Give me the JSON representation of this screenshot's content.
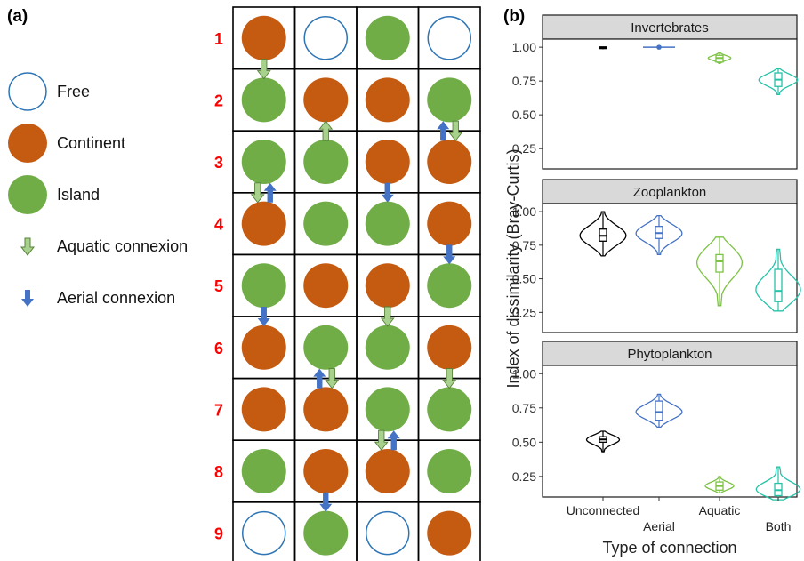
{
  "panel_a": {
    "label": "(a)",
    "legend": [
      {
        "key": "free",
        "label": "Free",
        "icon": "circle-outline"
      },
      {
        "key": "continent",
        "label": "Continent",
        "icon": "circle-filled"
      },
      {
        "key": "island",
        "label": "Island",
        "icon": "circle-filled"
      },
      {
        "key": "aquatic",
        "label": "Aquatic connexion",
        "icon": "arrow-down-outline"
      },
      {
        "key": "aerial",
        "label": "Aerial connexion",
        "icon": "arrow-down-solid"
      }
    ],
    "colors": {
      "continent": "#c55a11",
      "island": "#70ad47",
      "free_stroke": "#2e75b6",
      "aquatic": "#70ad47",
      "aerial": "#4472c4",
      "row_label": "#ff0000"
    },
    "row_labels": [
      "1",
      "2",
      "3",
      "4",
      "5",
      "6",
      "7",
      "8",
      "9"
    ],
    "grid": [
      [
        "continent",
        "free",
        "island",
        "free"
      ],
      [
        "island",
        "continent",
        "continent",
        "island"
      ],
      [
        "island",
        "island",
        "continent",
        "continent"
      ],
      [
        "continent",
        "island",
        "island",
        "continent"
      ],
      [
        "island",
        "continent",
        "continent",
        "island"
      ],
      [
        "continent",
        "island",
        "island",
        "continent"
      ],
      [
        "continent",
        "continent",
        "island",
        "island"
      ],
      [
        "island",
        "continent",
        "continent",
        "island"
      ],
      [
        "free",
        "island",
        "free",
        "continent"
      ]
    ],
    "connections": [
      {
        "between_rows": [
          1,
          2
        ],
        "column": 1,
        "arrows": [
          {
            "type": "aquatic",
            "dir": "down"
          }
        ]
      },
      {
        "between_rows": [
          2,
          3
        ],
        "column": 2,
        "arrows": [
          {
            "type": "aquatic",
            "dir": "up"
          }
        ]
      },
      {
        "between_rows": [
          2,
          3
        ],
        "column": 4,
        "arrows": [
          {
            "type": "aerial",
            "dir": "up"
          },
          {
            "type": "aquatic",
            "dir": "down"
          }
        ]
      },
      {
        "between_rows": [
          3,
          4
        ],
        "column": 1,
        "arrows": [
          {
            "type": "aquatic",
            "dir": "down"
          },
          {
            "type": "aerial",
            "dir": "up"
          }
        ]
      },
      {
        "between_rows": [
          3,
          4
        ],
        "column": 3,
        "arrows": [
          {
            "type": "aerial",
            "dir": "down"
          }
        ]
      },
      {
        "between_rows": [
          4,
          5
        ],
        "column": 4,
        "arrows": [
          {
            "type": "aerial",
            "dir": "down"
          }
        ]
      },
      {
        "between_rows": [
          5,
          6
        ],
        "column": 1,
        "arrows": [
          {
            "type": "aerial",
            "dir": "down"
          }
        ]
      },
      {
        "between_rows": [
          5,
          6
        ],
        "column": 3,
        "arrows": [
          {
            "type": "aquatic",
            "dir": "down"
          }
        ]
      },
      {
        "between_rows": [
          6,
          7
        ],
        "column": 2,
        "arrows": [
          {
            "type": "aerial",
            "dir": "up"
          },
          {
            "type": "aquatic",
            "dir": "down"
          }
        ]
      },
      {
        "between_rows": [
          6,
          7
        ],
        "column": 4,
        "arrows": [
          {
            "type": "aquatic",
            "dir": "down"
          }
        ]
      },
      {
        "between_rows": [
          7,
          8
        ],
        "column": 3,
        "arrows": [
          {
            "type": "aquatic",
            "dir": "down"
          },
          {
            "type": "aerial",
            "dir": "up"
          }
        ]
      },
      {
        "between_rows": [
          8,
          9
        ],
        "column": 2,
        "arrows": [
          {
            "type": "aerial",
            "dir": "down"
          }
        ]
      }
    ]
  },
  "chart_data": {
    "type": "violin",
    "panel_label": "(b)",
    "xlabel": "Type of connection",
    "ylabel": "Index of dissimilarity (Bray-Curtis)",
    "categories": [
      "Unconnected",
      "Aerial",
      "Aquatic",
      "Both"
    ],
    "category_colors": [
      "#000000",
      "#4472c4",
      "#7cc242",
      "#26c2a8"
    ],
    "yticks": [
      0.25,
      0.5,
      0.75,
      1.0
    ],
    "ytick_labels": [
      "0.25",
      "0.50",
      "0.75",
      "1.00"
    ],
    "ylim": [
      0.1,
      1.06
    ],
    "panels": [
      {
        "title": "Invertebrates",
        "groups": [
          {
            "category": "Unconnected",
            "min": 0.99,
            "q1": 0.99,
            "median": 1.0,
            "q3": 1.0,
            "max": 1.0
          },
          {
            "category": "Aerial",
            "min": 1.0,
            "q1": 1.0,
            "median": 1.0,
            "q3": 1.0,
            "max": 1.0
          },
          {
            "category": "Aquatic",
            "min": 0.88,
            "q1": 0.89,
            "median": 0.92,
            "q3": 0.94,
            "max": 0.96
          },
          {
            "category": "Both",
            "min": 0.65,
            "q1": 0.71,
            "median": 0.76,
            "q3": 0.81,
            "max": 0.84
          }
        ]
      },
      {
        "title": "Zooplankton",
        "groups": [
          {
            "category": "Unconnected",
            "min": 0.67,
            "q1": 0.78,
            "median": 0.82,
            "q3": 0.87,
            "max": 1.0
          },
          {
            "category": "Aerial",
            "min": 0.68,
            "q1": 0.8,
            "median": 0.84,
            "q3": 0.89,
            "max": 0.97
          },
          {
            "category": "Aquatic",
            "min": 0.3,
            "q1": 0.55,
            "median": 0.63,
            "q3": 0.68,
            "max": 0.81
          },
          {
            "category": "Both",
            "min": 0.26,
            "q1": 0.33,
            "median": 0.41,
            "q3": 0.57,
            "max": 0.72
          }
        ]
      },
      {
        "title": "Phytoplankton",
        "groups": [
          {
            "category": "Unconnected",
            "min": 0.43,
            "q1": 0.5,
            "median": 0.52,
            "q3": 0.54,
            "max": 0.58
          },
          {
            "category": "Aerial",
            "min": 0.61,
            "q1": 0.66,
            "median": 0.72,
            "q3": 0.8,
            "max": 0.85
          },
          {
            "category": "Aquatic",
            "min": 0.13,
            "q1": 0.15,
            "median": 0.18,
            "q3": 0.21,
            "max": 0.25
          },
          {
            "category": "Both",
            "min": 0.08,
            "q1": 0.11,
            "median": 0.15,
            "q3": 0.2,
            "max": 0.32
          }
        ]
      }
    ]
  }
}
